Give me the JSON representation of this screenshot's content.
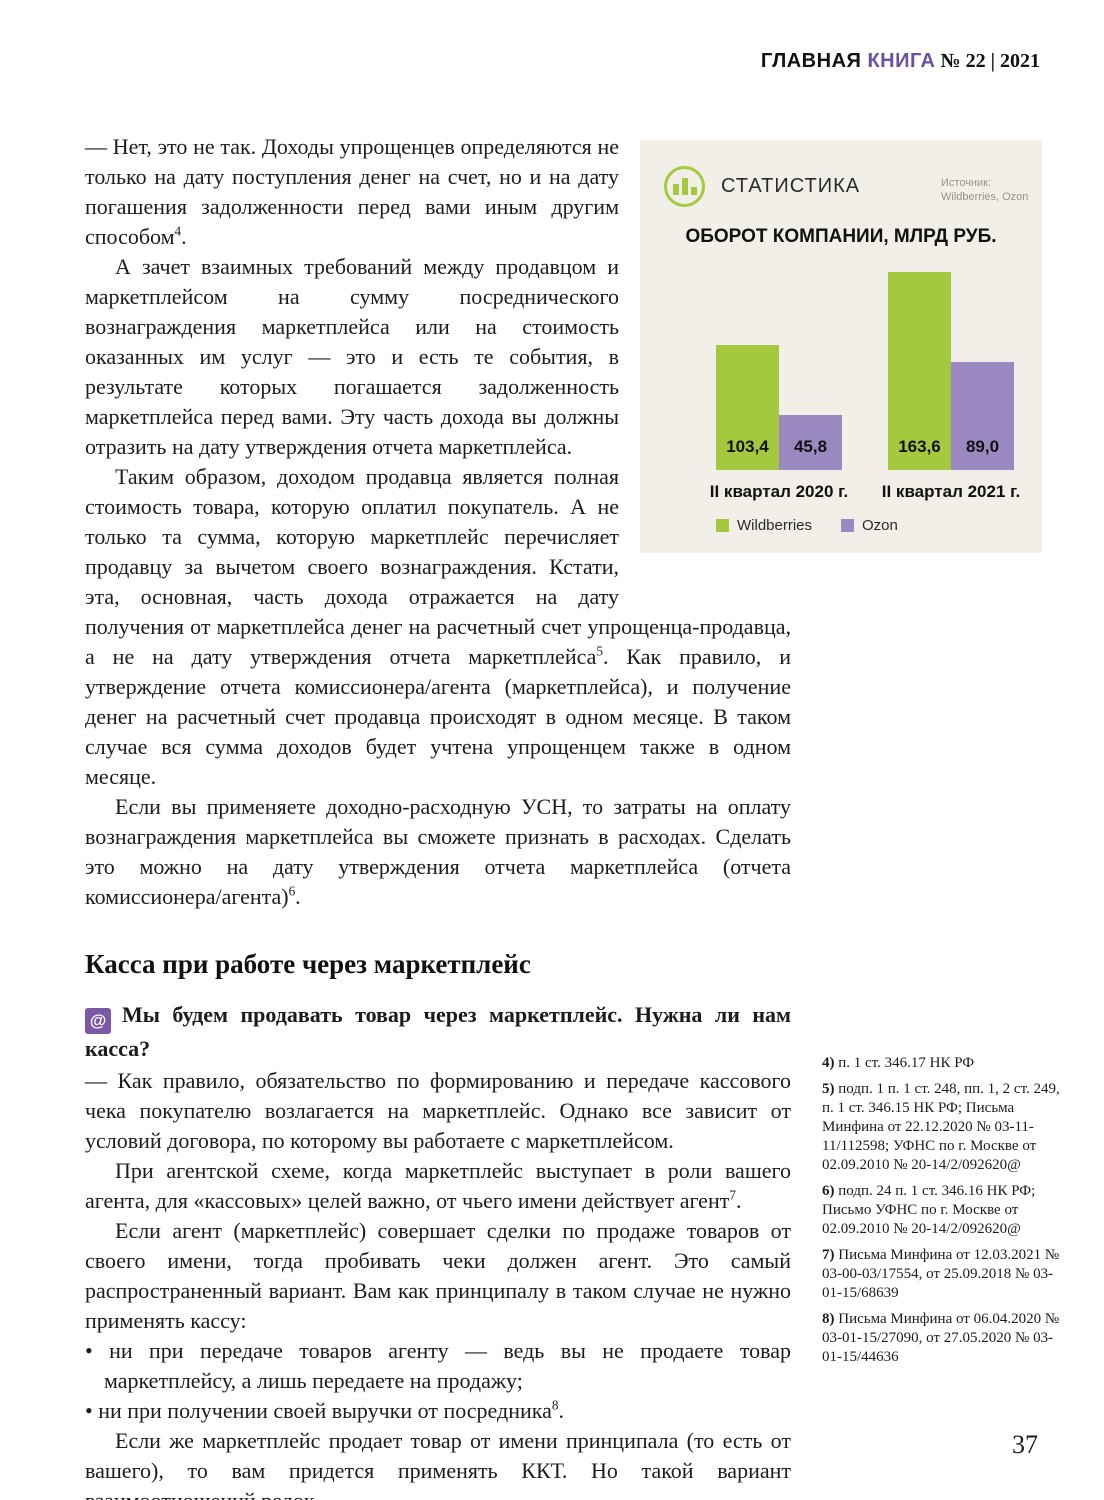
{
  "header": {
    "brand_black": "ГЛАВНАЯ ",
    "brand_purple": "КНИГА",
    "issue": " № 22 | 2021",
    "accent_color": "#6b51a3"
  },
  "page_number": "37",
  "stats": {
    "label": "СТАТИСТИКА",
    "source_caption": "Источник:",
    "source_names": "Wildberries, Ozon",
    "title": "ОБОРОТ КОМПАНИИ, МЛРД РУБ.",
    "box_bg": "#f2efe9"
  },
  "chart_data": {
    "type": "bar",
    "title": "ОБОРОТ КОМПАНИИ, МЛРД РУБ.",
    "unit": "млрд руб.",
    "categories": [
      "II квартал 2020 г.",
      "II квартал 2021 г."
    ],
    "series": [
      {
        "name": "Wildberries",
        "values": [
          103.4,
          163.6
        ],
        "color": "#a5c93e"
      },
      {
        "name": "Ozon",
        "values": [
          45.8,
          89.0
        ],
        "color": "#9b8ac1"
      }
    ],
    "value_labels": [
      [
        "103,4",
        "163,6"
      ],
      [
        "45,8",
        "89,0"
      ]
    ],
    "ylim": [
      0,
      163.6
    ],
    "grid": false,
    "legend_position": "bottom",
    "value_labels_inside_bars": true
  },
  "article": {
    "p1": "—  Нет, это не так. Доходы упрощенцев определяются не только на дату поступления денег на счет, но и на дату погашения задолженности перед вами иным другим способом^4.",
    "p2": "А зачет взаимных требований между продавцом и маркетплейсом на сумму посреднического вознаграждения маркетплейса или на стоимость оказанных им услуг — это и есть те события, в результате которых погашается задолженность маркетплейса перед вами. Эту часть дохода вы должны отразить на дату утверждения отчета маркетплейса.",
    "p3": "Таким образом, доходом продавца является полная стоимость товара, которую оплатил покупатель. А не только та сумма, которую маркетплейс перечисляет продавцу за вычетом своего вознаграждения. Кстати, эта, основная, часть дохода отражается на дату получения от маркетплейса денег на расчетный счет упрощенца-продавца, а не на дату утверждения отчета маркетплейса^5. Как правило, и утверждение отчета комиссионера/агента (маркетплейса), и получение денег на расчетный счет продавца происходят в одном месяце. В таком случае вся сумма доходов будет учтена упрощенцем также в одном месяце.",
    "p4": "Если вы применяете доходно-расходную УСН, то затраты на оплату вознаграждения маркетплейса вы сможете признать в расходах. Сделать это можно на дату утверждения отчета маркетплейса (отчета комиссионера/агента)^6.",
    "section_heading": "Касса при работе через маркетплейс",
    "at_symbol": "@",
    "question": "Мы будем продавать товар через маркетплейс. Нужна ли нам касса?",
    "p5": "—  Как правило, обязательство по формированию и передаче кассового чека покупателю возлагается на маркетплейс. Однако все зависит от условий договора, по которому вы работаете с маркетплейсом.",
    "p6": "При агентской схеме, когда маркетплейс выступает в роли вашего агента, для «кассовых» целей важно, от чьего имени действует агент^7.",
    "p7": "Если агент (маркетплейс) совершает сделки по продаже товаров от своего имени, тогда пробивать чеки должен агент. Это самый распространенный вариант. Вам как принципалу в таком случае не нужно применять кассу:",
    "bullets": [
      "ни при передаче товаров агенту — ведь вы не продаете товар маркетплейсу, а лишь передаете на продажу;",
      "ни при получении своей выручки от посредника^8."
    ],
    "p8": "Если же маркетплейс продает товар от имени принципала (то есть от вашего), то вам придется применять ККТ. Но такой вариант взаимоотношений редок."
  },
  "footnotes": [
    {
      "num": "4)",
      "text": "п. 1 ст. 346.17 НК РФ"
    },
    {
      "num": "5)",
      "text": "подп. 1 п. 1 ст. 248, пп. 1, 2 ст. 249, п. 1 ст. 346.15 НК РФ; Письма Минфина от 22.12.2020 № 03-11-11/112598; УФНС по г. Москве от 02.09.2010 № 20-14/2/092620@"
    },
    {
      "num": "6)",
      "text": "подп. 24 п. 1 ст. 346.16 НК РФ; Письмо УФНС по г. Москве от 02.09.2010 № 20-14/2/092620@"
    },
    {
      "num": "7)",
      "text": "Письма Минфина от 12.03.2021 № 03-00-03/17554, от 25.09.2018 № 03-01-15/68639"
    },
    {
      "num": "8)",
      "text": "Письма Минфина от 06.04.2020 № 03-01-15/27090, от 27.05.2020 № 03-01-15/44636"
    }
  ]
}
